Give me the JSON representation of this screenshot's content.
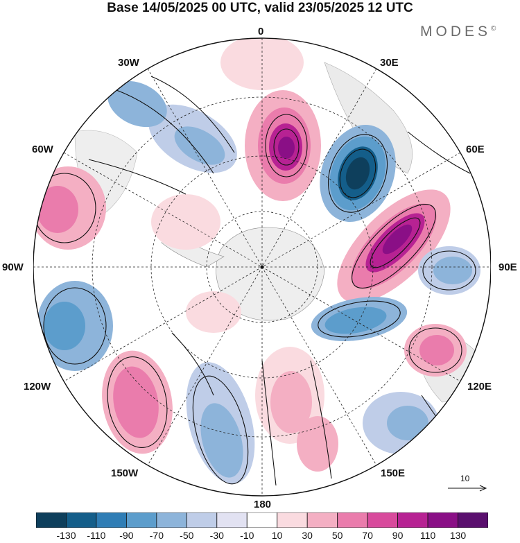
{
  "title": "Base 14/05/2025 00 UTC, valid 23/05/2025 12 UTC",
  "brand": {
    "name": "MODES",
    "mark": "©"
  },
  "longitude_labels": {
    "top": "0",
    "top_left": "30W",
    "top_right": "30E",
    "left_upper": "60W",
    "right_upper": "60E",
    "left": "90W",
    "right": "90E",
    "left_lower": "120W",
    "right_lower": "120E",
    "bottom_left": "150W",
    "bottom_right": "150E",
    "bottom": "180"
  },
  "reference_vector": {
    "label": "10"
  },
  "colorbar": {
    "ticks": [
      "-130",
      "-110",
      "-90",
      "-70",
      "-50",
      "-30",
      "-10",
      "10",
      "30",
      "50",
      "70",
      "90",
      "110",
      "130"
    ],
    "colors": [
      "#0e3f5c",
      "#145e8a",
      "#2f7db5",
      "#5c9dcc",
      "#8db4da",
      "#bfcde8",
      "#e2e2f2",
      "#ffffff",
      "#fadbe0",
      "#f4afc3",
      "#ea7cac",
      "#d84a9c",
      "#b72293",
      "#8a0f86",
      "#5a0f6e"
    ]
  }
}
